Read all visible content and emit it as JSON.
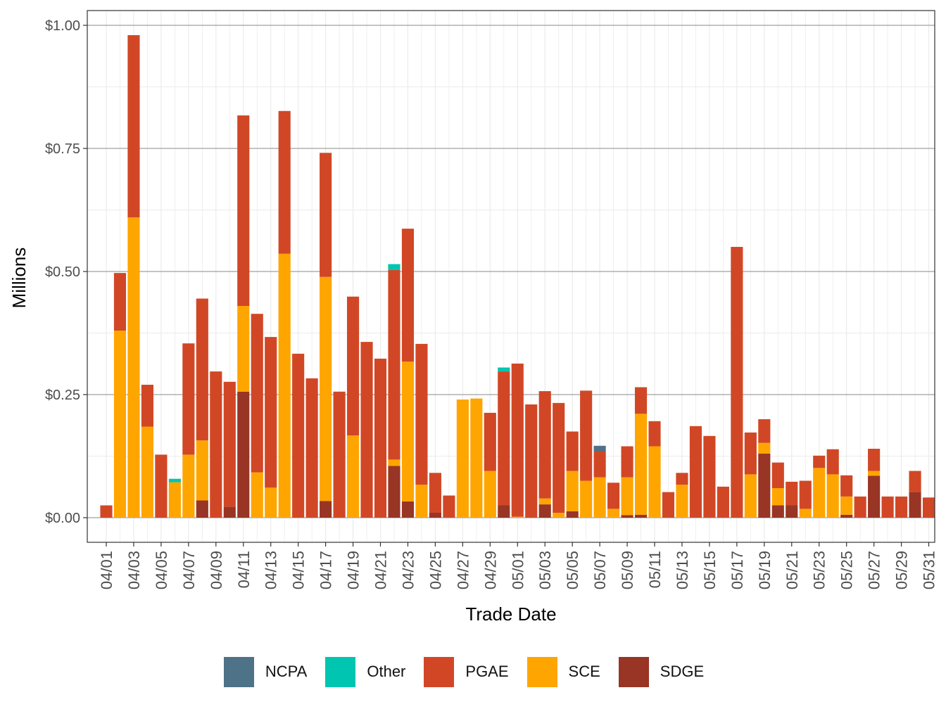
{
  "chart_data": {
    "type": "bar",
    "stacked": true,
    "xlabel": "Trade Date",
    "ylabel": "Millions",
    "ylim": [
      -0.05,
      1.03
    ],
    "yticks": [
      0.0,
      0.25,
      0.5,
      0.75,
      1.0
    ],
    "ytick_labels": [
      "$0.00",
      "$0.25",
      "$0.50",
      "$0.75",
      "$1.00"
    ],
    "grid": true,
    "legend_position": "bottom",
    "colors": {
      "NCPA": "#4e7287",
      "Other": "#00c5b0",
      "PGAE": "#d14726",
      "SCE": "#ffa500",
      "SDGE": "#983525"
    },
    "categories": [
      "04/01",
      "04/02",
      "04/03",
      "04/04",
      "04/05",
      "04/06",
      "04/07",
      "04/08",
      "04/09",
      "04/10",
      "04/11",
      "04/12",
      "04/13",
      "04/14",
      "04/15",
      "04/16",
      "04/17",
      "04/18",
      "04/19",
      "04/20",
      "04/21",
      "04/22",
      "04/23",
      "04/24",
      "04/25",
      "04/26",
      "04/27",
      "04/28",
      "04/29",
      "04/30",
      "05/01",
      "05/02",
      "05/03",
      "05/04",
      "05/05",
      "05/06",
      "05/07",
      "05/08",
      "05/09",
      "05/10",
      "05/11",
      "05/12",
      "05/13",
      "05/14",
      "05/15",
      "05/16",
      "05/17",
      "05/18",
      "05/19",
      "05/20",
      "05/21",
      "05/22",
      "05/23",
      "05/24",
      "05/25",
      "05/26",
      "05/27",
      "05/28",
      "05/29",
      "05/30",
      "05/31"
    ],
    "tick_labels": [
      "04/01",
      "04/03",
      "04/05",
      "04/07",
      "04/09",
      "04/11",
      "04/13",
      "04/15",
      "04/17",
      "04/19",
      "04/21",
      "04/23",
      "04/25",
      "04/27",
      "04/29",
      "05/01",
      "05/03",
      "05/05",
      "05/07",
      "05/09",
      "05/11",
      "05/13",
      "05/15",
      "05/17",
      "05/19",
      "05/21",
      "05/23",
      "05/25",
      "05/27",
      "05/29",
      "05/31"
    ],
    "series": [
      {
        "name": "SDGE",
        "values": [
          0,
          0,
          0,
          0,
          0,
          0,
          0,
          0.035,
          0,
          0.022,
          0.256,
          0,
          0,
          0,
          0,
          0,
          0.034,
          0,
          0,
          0,
          0,
          0.105,
          0.033,
          0,
          0.01,
          0,
          0,
          0,
          0,
          0.025,
          0,
          0,
          0.027,
          0,
          0.013,
          0,
          0,
          0,
          0.005,
          0.006,
          0,
          0,
          0,
          0,
          0,
          0,
          0,
          0,
          0.13,
          0.025,
          0.025,
          0,
          0,
          0,
          0.006,
          0,
          0.085,
          0,
          0,
          0.052,
          0
        ]
      },
      {
        "name": "SCE",
        "values": [
          0,
          0.38,
          0.61,
          0.185,
          0,
          0.072,
          0.128,
          0.122,
          0,
          0,
          0.174,
          0.092,
          0.061,
          0.536,
          0,
          0,
          0.455,
          0,
          0.167,
          0,
          0,
          0.013,
          0.284,
          0.067,
          0,
          0,
          0.24,
          0.242,
          0.095,
          0,
          0.002,
          0,
          0.012,
          0.01,
          0.082,
          0.075,
          0.082,
          0.018,
          0.077,
          0.205,
          0.145,
          0,
          0.067,
          0,
          0,
          0,
          0,
          0.088,
          0.022,
          0.035,
          0,
          0.018,
          0.101,
          0.088,
          0.037,
          0,
          0.01,
          0,
          0,
          0,
          0
        ]
      },
      {
        "name": "PGAE",
        "values": [
          0.025,
          0.117,
          0.37,
          0.085,
          0.128,
          0,
          0.226,
          0.288,
          0.297,
          0.254,
          0.387,
          0.322,
          0.306,
          0.29,
          0.333,
          0.283,
          0.252,
          0.256,
          0.282,
          0.357,
          0.323,
          0.385,
          0.27,
          0.286,
          0.081,
          0.045,
          0,
          0,
          0.118,
          0.272,
          0.311,
          0.23,
          0.218,
          0.223,
          0.08,
          0.183,
          0.053,
          0.053,
          0.063,
          0.054,
          0.051,
          0.052,
          0.024,
          0.186,
          0.166,
          0.063,
          0.55,
          0.085,
          0.048,
          0.052,
          0.048,
          0.057,
          0.025,
          0.051,
          0.043,
          0.043,
          0.045,
          0.043,
          0.043,
          0.043,
          0.041
        ]
      },
      {
        "name": "Other",
        "values": [
          0,
          0,
          0,
          0,
          0,
          0.007,
          0,
          0,
          0,
          0,
          0,
          0,
          0,
          0,
          0,
          0,
          0,
          0,
          0,
          0,
          0,
          0.012,
          0,
          0,
          0,
          0,
          0,
          0,
          0,
          0.008,
          0,
          0,
          0,
          0,
          0,
          0,
          0,
          0,
          0,
          0,
          0,
          0,
          0,
          0,
          0,
          0,
          0,
          0,
          0,
          0,
          0,
          0,
          0,
          0,
          0,
          0,
          0,
          0,
          0,
          0,
          0
        ]
      },
      {
        "name": "NCPA",
        "values": [
          0,
          0,
          0,
          0,
          0,
          0,
          0,
          0,
          0,
          0,
          0,
          0,
          0,
          0,
          0,
          0,
          0,
          0,
          0,
          0,
          0,
          0,
          0,
          0,
          0,
          0,
          0,
          0,
          0,
          0,
          0,
          0,
          0,
          0,
          0,
          0,
          0.011,
          0,
          0,
          0,
          0,
          0,
          0,
          0,
          0,
          0,
          0,
          0,
          0,
          0,
          0,
          0,
          0,
          0,
          0,
          0,
          0,
          0,
          0,
          0,
          0
        ]
      }
    ],
    "legend_order": [
      "NCPA",
      "Other",
      "PGAE",
      "SCE",
      "SDGE"
    ]
  }
}
